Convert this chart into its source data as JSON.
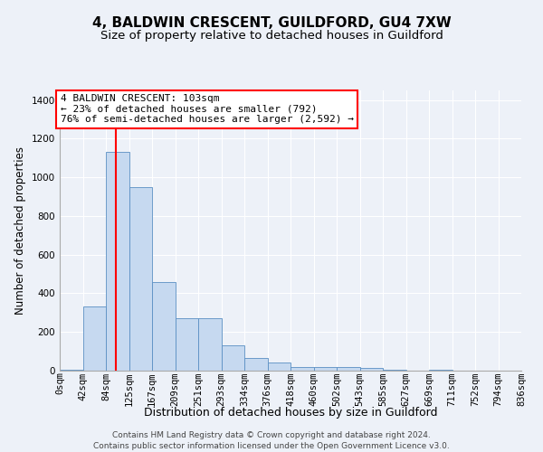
{
  "title": "4, BALDWIN CRESCENT, GUILDFORD, GU4 7XW",
  "subtitle": "Size of property relative to detached houses in Guildford",
  "xlabel": "Distribution of detached houses by size in Guildford",
  "ylabel": "Number of detached properties",
  "bar_values": [
    5,
    330,
    1130,
    950,
    460,
    270,
    270,
    130,
    65,
    40,
    20,
    20,
    20,
    15,
    5,
    0,
    5,
    0,
    0,
    0
  ],
  "bar_labels": [
    "0sqm",
    "42sqm",
    "84sqm",
    "125sqm",
    "167sqm",
    "209sqm",
    "251sqm",
    "293sqm",
    "334sqm",
    "376sqm",
    "418sqm",
    "460sqm",
    "502sqm",
    "543sqm",
    "585sqm",
    "627sqm",
    "669sqm",
    "711sqm",
    "752sqm",
    "794sqm",
    "836sqm"
  ],
  "bar_color": "#c6d9f0",
  "bar_edge_color": "#5a8fc3",
  "red_line_x": 2.45,
  "ylim": [
    0,
    1450
  ],
  "yticks": [
    0,
    200,
    400,
    600,
    800,
    1000,
    1200,
    1400
  ],
  "annotation_title": "4 BALDWIN CRESCENT: 103sqm",
  "annotation_line1": "← 23% of detached houses are smaller (792)",
  "annotation_line2": "76% of semi-detached houses are larger (2,592) →",
  "footer_line1": "Contains HM Land Registry data © Crown copyright and database right 2024.",
  "footer_line2": "Contains public sector information licensed under the Open Government Licence v3.0.",
  "background_color": "#edf1f8",
  "plot_bg_color": "#edf1f8",
  "grid_color": "#ffffff",
  "title_fontsize": 11,
  "subtitle_fontsize": 9.5,
  "ylabel_fontsize": 8.5,
  "xlabel_fontsize": 9,
  "tick_fontsize": 7.5,
  "annotation_fontsize": 8,
  "footer_fontsize": 6.5
}
